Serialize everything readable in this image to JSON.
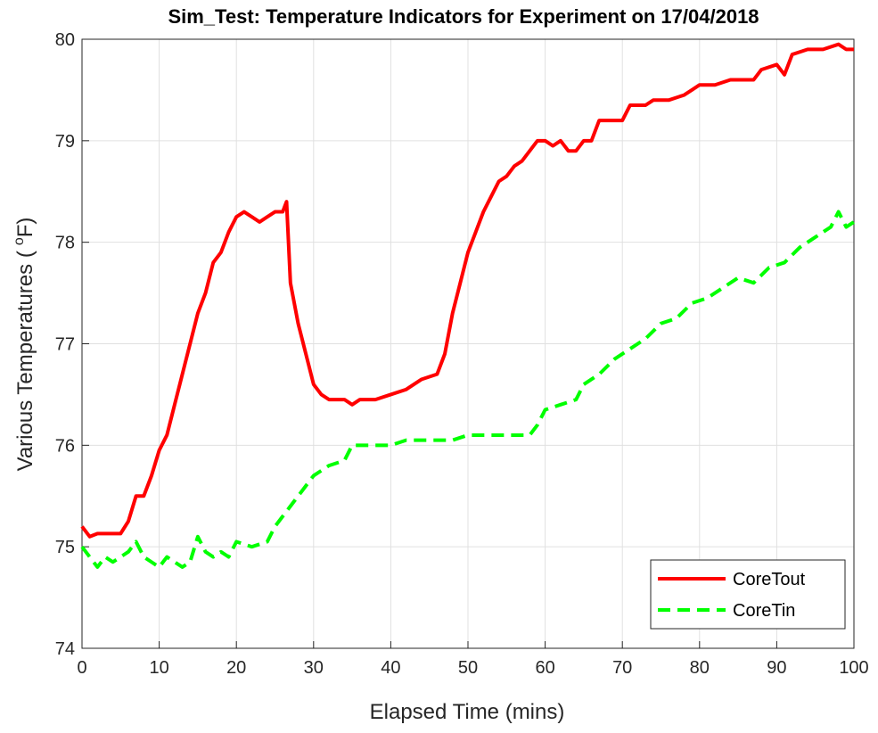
{
  "chart_data": {
    "type": "line",
    "title": "Sim_Test: Temperature Indicators for Experiment on 17/04/2018",
    "xlabel": "Elapsed Time (mins)",
    "ylabel": [
      "Various Temperatures (",
      "o",
      "F)"
    ],
    "xlim": [
      0,
      100
    ],
    "xticks": [
      0,
      10,
      20,
      30,
      40,
      50,
      60,
      70,
      80,
      90,
      100
    ],
    "ylim": [
      74,
      80
    ],
    "yticks": [
      74,
      75,
      76,
      77,
      78,
      79,
      80
    ],
    "grid": true,
    "legend": "lower right",
    "series": [
      {
        "name": "CoreTout",
        "color": "#ff0000",
        "dash": "solid",
        "x": [
          0,
          1,
          2,
          3,
          5,
          6,
          7,
          8,
          9,
          10,
          11,
          12,
          13,
          14,
          15,
          16,
          17,
          18,
          19,
          20,
          21,
          22,
          23,
          24,
          25,
          26,
          26.5,
          27,
          28,
          29,
          30,
          31,
          32,
          34,
          35,
          36,
          38,
          40,
          42,
          44,
          46,
          47,
          48,
          49,
          50,
          51,
          52,
          53,
          54,
          55,
          56,
          57,
          58,
          59,
          60,
          61,
          62,
          63,
          64,
          65,
          66,
          67,
          70,
          71,
          73,
          74,
          76,
          78,
          79,
          80,
          82,
          84,
          87,
          88,
          90,
          91,
          92,
          94,
          96,
          98,
          99,
          100
        ],
        "values": [
          75.2,
          75.1,
          75.13,
          75.13,
          75.13,
          75.25,
          75.5,
          75.5,
          75.7,
          75.95,
          76.1,
          76.4,
          76.7,
          77.0,
          77.3,
          77.5,
          77.8,
          77.9,
          78.1,
          78.25,
          78.3,
          78.25,
          78.2,
          78.25,
          78.3,
          78.3,
          78.4,
          77.6,
          77.2,
          76.9,
          76.6,
          76.5,
          76.45,
          76.45,
          76.4,
          76.45,
          76.45,
          76.5,
          76.55,
          76.65,
          76.7,
          76.9,
          77.3,
          77.6,
          77.9,
          78.1,
          78.3,
          78.45,
          78.6,
          78.65,
          78.75,
          78.8,
          78.9,
          79.0,
          79.0,
          78.95,
          79.0,
          78.9,
          78.9,
          79.0,
          79.0,
          79.2,
          79.2,
          79.35,
          79.35,
          79.4,
          79.4,
          79.45,
          79.5,
          79.55,
          79.55,
          79.6,
          79.6,
          79.7,
          79.75,
          79.65,
          79.85,
          79.9,
          79.9,
          79.95,
          79.9,
          79.9
        ]
      },
      {
        "name": "CoreTin",
        "color": "#00ff00",
        "dash": "dashed",
        "x": [
          0,
          1,
          2,
          3,
          4,
          5,
          6,
          7,
          8,
          9,
          10,
          11,
          12,
          13,
          14,
          15,
          16,
          17,
          18,
          19,
          20,
          22,
          24,
          25,
          26,
          27,
          28,
          29,
          30,
          32,
          34,
          35,
          37,
          40,
          42,
          44,
          46,
          48,
          50,
          52,
          54,
          56,
          58,
          59,
          60,
          62,
          64,
          65,
          67,
          69,
          71,
          73,
          75,
          77,
          79,
          81,
          83,
          85,
          87,
          89,
          91,
          93,
          95,
          97,
          98,
          99,
          100
        ],
        "values": [
          75.0,
          74.9,
          74.8,
          74.9,
          74.85,
          74.9,
          74.95,
          75.05,
          74.9,
          74.85,
          74.8,
          74.9,
          74.85,
          74.8,
          74.85,
          75.1,
          74.95,
          74.9,
          74.95,
          74.9,
          75.05,
          75.0,
          75.05,
          75.2,
          75.3,
          75.4,
          75.5,
          75.6,
          75.7,
          75.8,
          75.85,
          76.0,
          76.0,
          76.0,
          76.05,
          76.05,
          76.05,
          76.05,
          76.1,
          76.1,
          76.1,
          76.1,
          76.1,
          76.2,
          76.35,
          76.4,
          76.45,
          76.6,
          76.7,
          76.85,
          76.95,
          77.05,
          77.2,
          77.25,
          77.4,
          77.45,
          77.55,
          77.65,
          77.6,
          77.75,
          77.8,
          77.95,
          78.05,
          78.15,
          78.3,
          78.15,
          78.2
        ]
      }
    ]
  }
}
